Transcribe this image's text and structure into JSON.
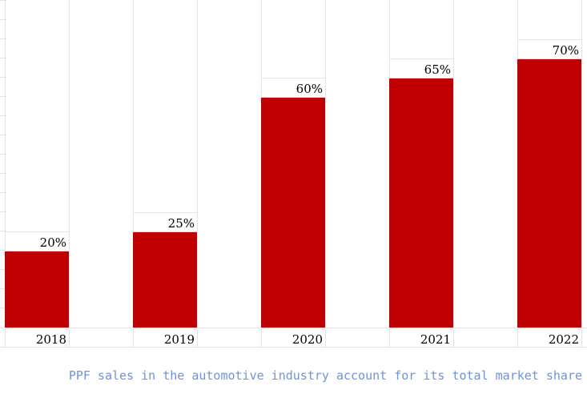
{
  "chart_data": {
    "type": "bar",
    "categories": [
      "2018",
      "2019",
      "2020",
      "2021",
      "2022"
    ],
    "values": [
      20,
      25,
      60,
      65,
      70
    ],
    "value_labels": [
      "20%",
      "25%",
      "60%",
      "65%",
      "70%"
    ],
    "bar_color": "#c00000",
    "grid_color": "#e3e3e3",
    "grid": true,
    "legend": "none"
  },
  "caption": "PPF sales in the automotive industry account for its total market share",
  "caption_color": "#6f93d8"
}
